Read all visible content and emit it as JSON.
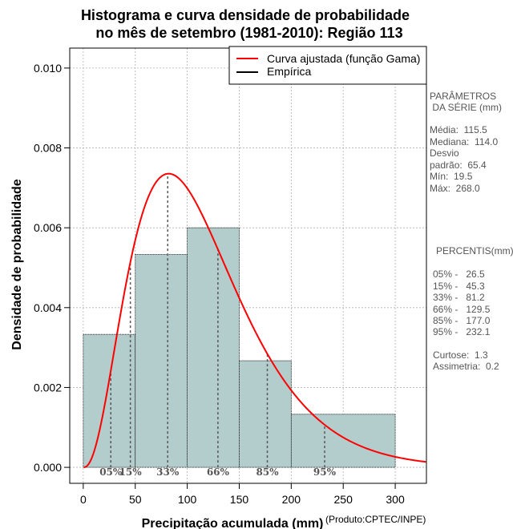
{
  "chart_data": {
    "type": "bar",
    "title": [
      "Histograma e curva densidade de probabilidade",
      "no mês de setembro (1981-2010): Região 113"
    ],
    "xlabel": "Precipitação acumulada (mm)",
    "ylabel": "Densidade de probabilidade",
    "xlim": [
      -13,
      330
    ],
    "ylim": [
      -0.0004,
      0.0105
    ],
    "x_ticks": [
      0,
      50,
      100,
      150,
      200,
      250,
      300
    ],
    "y_ticks": [
      0.0,
      0.002,
      0.004,
      0.006,
      0.008,
      0.01
    ],
    "y_tick_labels": [
      "0.000",
      "0.002",
      "0.004",
      "0.006",
      "0.008",
      "0.010"
    ],
    "grid": true,
    "bins": [
      {
        "x0": 0,
        "x1": 50,
        "density": 0.00333
      },
      {
        "x0": 50,
        "x1": 100,
        "density": 0.00533
      },
      {
        "x0": 100,
        "x1": 150,
        "density": 0.006
      },
      {
        "x0": 150,
        "x1": 200,
        "density": 0.00267
      },
      {
        "x0": 200,
        "x1": 300,
        "density": 0.00133
      }
    ],
    "gamma_fit": {
      "shape": 3.45,
      "scale": 33.5
    },
    "percentile_lines": [
      {
        "label": "05%",
        "x": 26.5
      },
      {
        "label": "15%",
        "x": 45.3
      },
      {
        "label": "33%",
        "x": 81.2
      },
      {
        "label": "66%",
        "x": 129.5
      },
      {
        "label": "85%",
        "x": 177.0
      },
      {
        "label": "95%",
        "x": 232.1
      }
    ],
    "legend": {
      "position": "top-right",
      "entries": [
        {
          "label": "Curva ajustada (função Gama)",
          "color": "#ff0000"
        },
        {
          "label": "Empírica",
          "color": "#000000"
        }
      ]
    },
    "producer": "(Produto:CPTEC/INPE)",
    "colors": {
      "bar_fill": "#b3cccc",
      "curve": "#ff0000",
      "grid": "#b0b0b0"
    }
  },
  "side_panel": {
    "params_title": [
      "PARÂMETROS",
      " DA SÉRIE (mm)"
    ],
    "params": [
      "Média:  115.5",
      "Mediana:  114.0",
      "Desvio",
      "padrão:  65.4",
      "Mín:  19.5",
      "Máx:  268.0"
    ],
    "percentis_title": "PERCENTIS(mm)",
    "percentis": [
      "05% -   26.5",
      "15% -   45.3",
      "33% -   81.2",
      "66% -   129.5",
      "85% -   177.0",
      "95% -   232.1"
    ],
    "stats": [
      "Curtose:  1.3",
      "Assimetria:  0.2"
    ]
  }
}
